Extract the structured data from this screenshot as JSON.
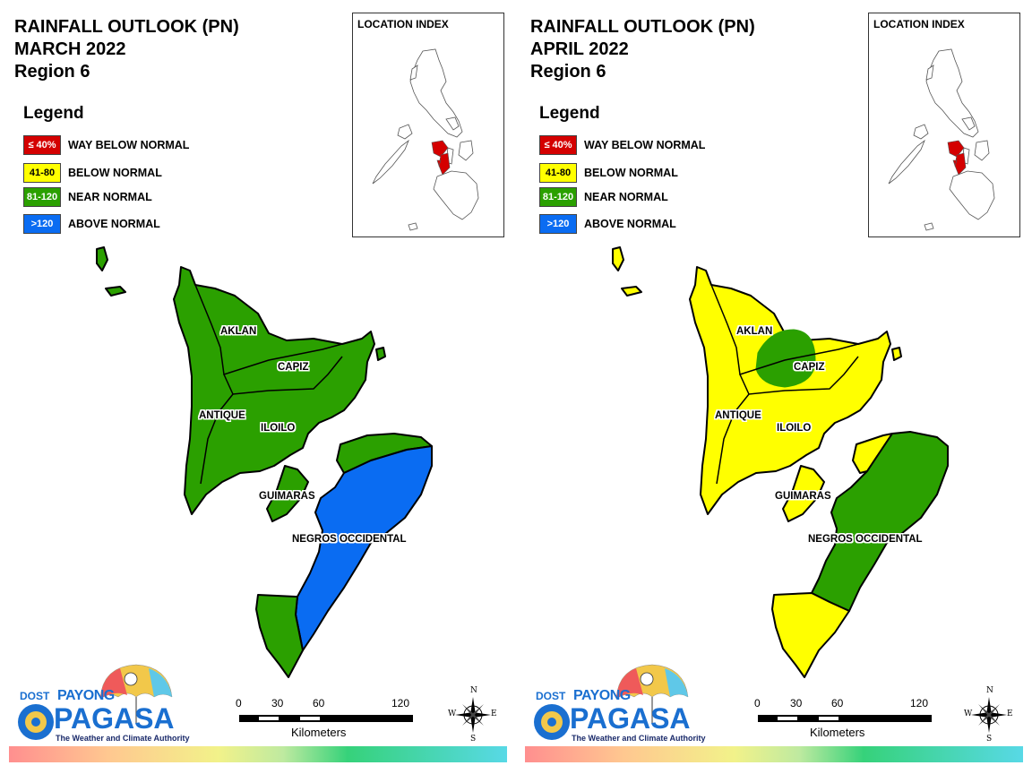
{
  "panels": [
    {
      "title_line1": "RAINFALL OUTLOOK (PN)",
      "title_line2": "MARCH 2022",
      "title_line3": "Region 6",
      "legend_title": "Legend",
      "legend": [
        {
          "range": "≤ 40%",
          "label": "WAY BELOW NORMAL",
          "color": "#d40000"
        },
        {
          "range": "41-80",
          "label": "BELOW NORMAL",
          "color": "#ffff00"
        },
        {
          "range": "81-120",
          "label": "NEAR NORMAL",
          "color": "#2ba000"
        },
        {
          "range": ">120",
          "label": "ABOVE NORMAL",
          "color": "#0a6cf2"
        }
      ],
      "location_index_title": "LOCATION INDEX",
      "provinces": {
        "aklan": "AKLAN",
        "capiz": "CAPIZ",
        "antique": "ANTIQUE",
        "iloilo": "ILOILO",
        "guimaras": "GUIMARAS",
        "negros": "NEGROS OCCIDENTAL"
      },
      "scale": {
        "ticks": [
          "0",
          "30",
          "60",
          "120"
        ],
        "unit": "Kilometers"
      },
      "compass": {
        "n": "N",
        "e": "E",
        "s": "S",
        "w": "W"
      },
      "logo": {
        "dost": "DOST",
        "payong": "PAYONG",
        "pagasa": "PAGASA",
        "tagline": "The Weather and Climate Authority"
      }
    },
    {
      "title_line1": "RAINFALL OUTLOOK (PN)",
      "title_line2": "APRIL 2022",
      "title_line3": "Region 6",
      "legend_title": "Legend",
      "legend": [
        {
          "range": "≤ 40%",
          "label": "WAY BELOW NORMAL",
          "color": "#d40000"
        },
        {
          "range": "41-80",
          "label": "BELOW NORMAL",
          "color": "#ffff00"
        },
        {
          "range": "81-120",
          "label": "NEAR NORMAL",
          "color": "#2ba000"
        },
        {
          "range": ">120",
          "label": "ABOVE NORMAL",
          "color": "#0a6cf2"
        }
      ],
      "location_index_title": "LOCATION INDEX",
      "provinces": {
        "aklan": "AKLAN",
        "capiz": "CAPIZ",
        "antique": "ANTIQUE",
        "iloilo": "ILOILO",
        "guimaras": "GUIMARAS",
        "negros": "NEGROS OCCIDENTAL"
      },
      "scale": {
        "ticks": [
          "0",
          "30",
          "60",
          "120"
        ],
        "unit": "Kilometers"
      },
      "compass": {
        "n": "N",
        "e": "E",
        "s": "S",
        "w": "W"
      },
      "logo": {
        "dost": "DOST",
        "payong": "PAYONG",
        "pagasa": "PAGASA",
        "tagline": "The Weather and Climate Authority"
      }
    }
  ],
  "fills": {
    "march": {
      "panay": "#2ba000",
      "guimaras": "#2ba000",
      "negros_north": "#2ba000",
      "negros_main": "#0a6cf2",
      "negros_south": "#2ba000"
    },
    "april": {
      "panay": "#ffff00",
      "panay_aklan_capiz": "#2ba000",
      "guimaras": "#ffff00",
      "negros_north": "#ffff00",
      "negros_main": "#2ba000",
      "negros_south": "#ffff00"
    },
    "location_highlight": "#d40000"
  }
}
